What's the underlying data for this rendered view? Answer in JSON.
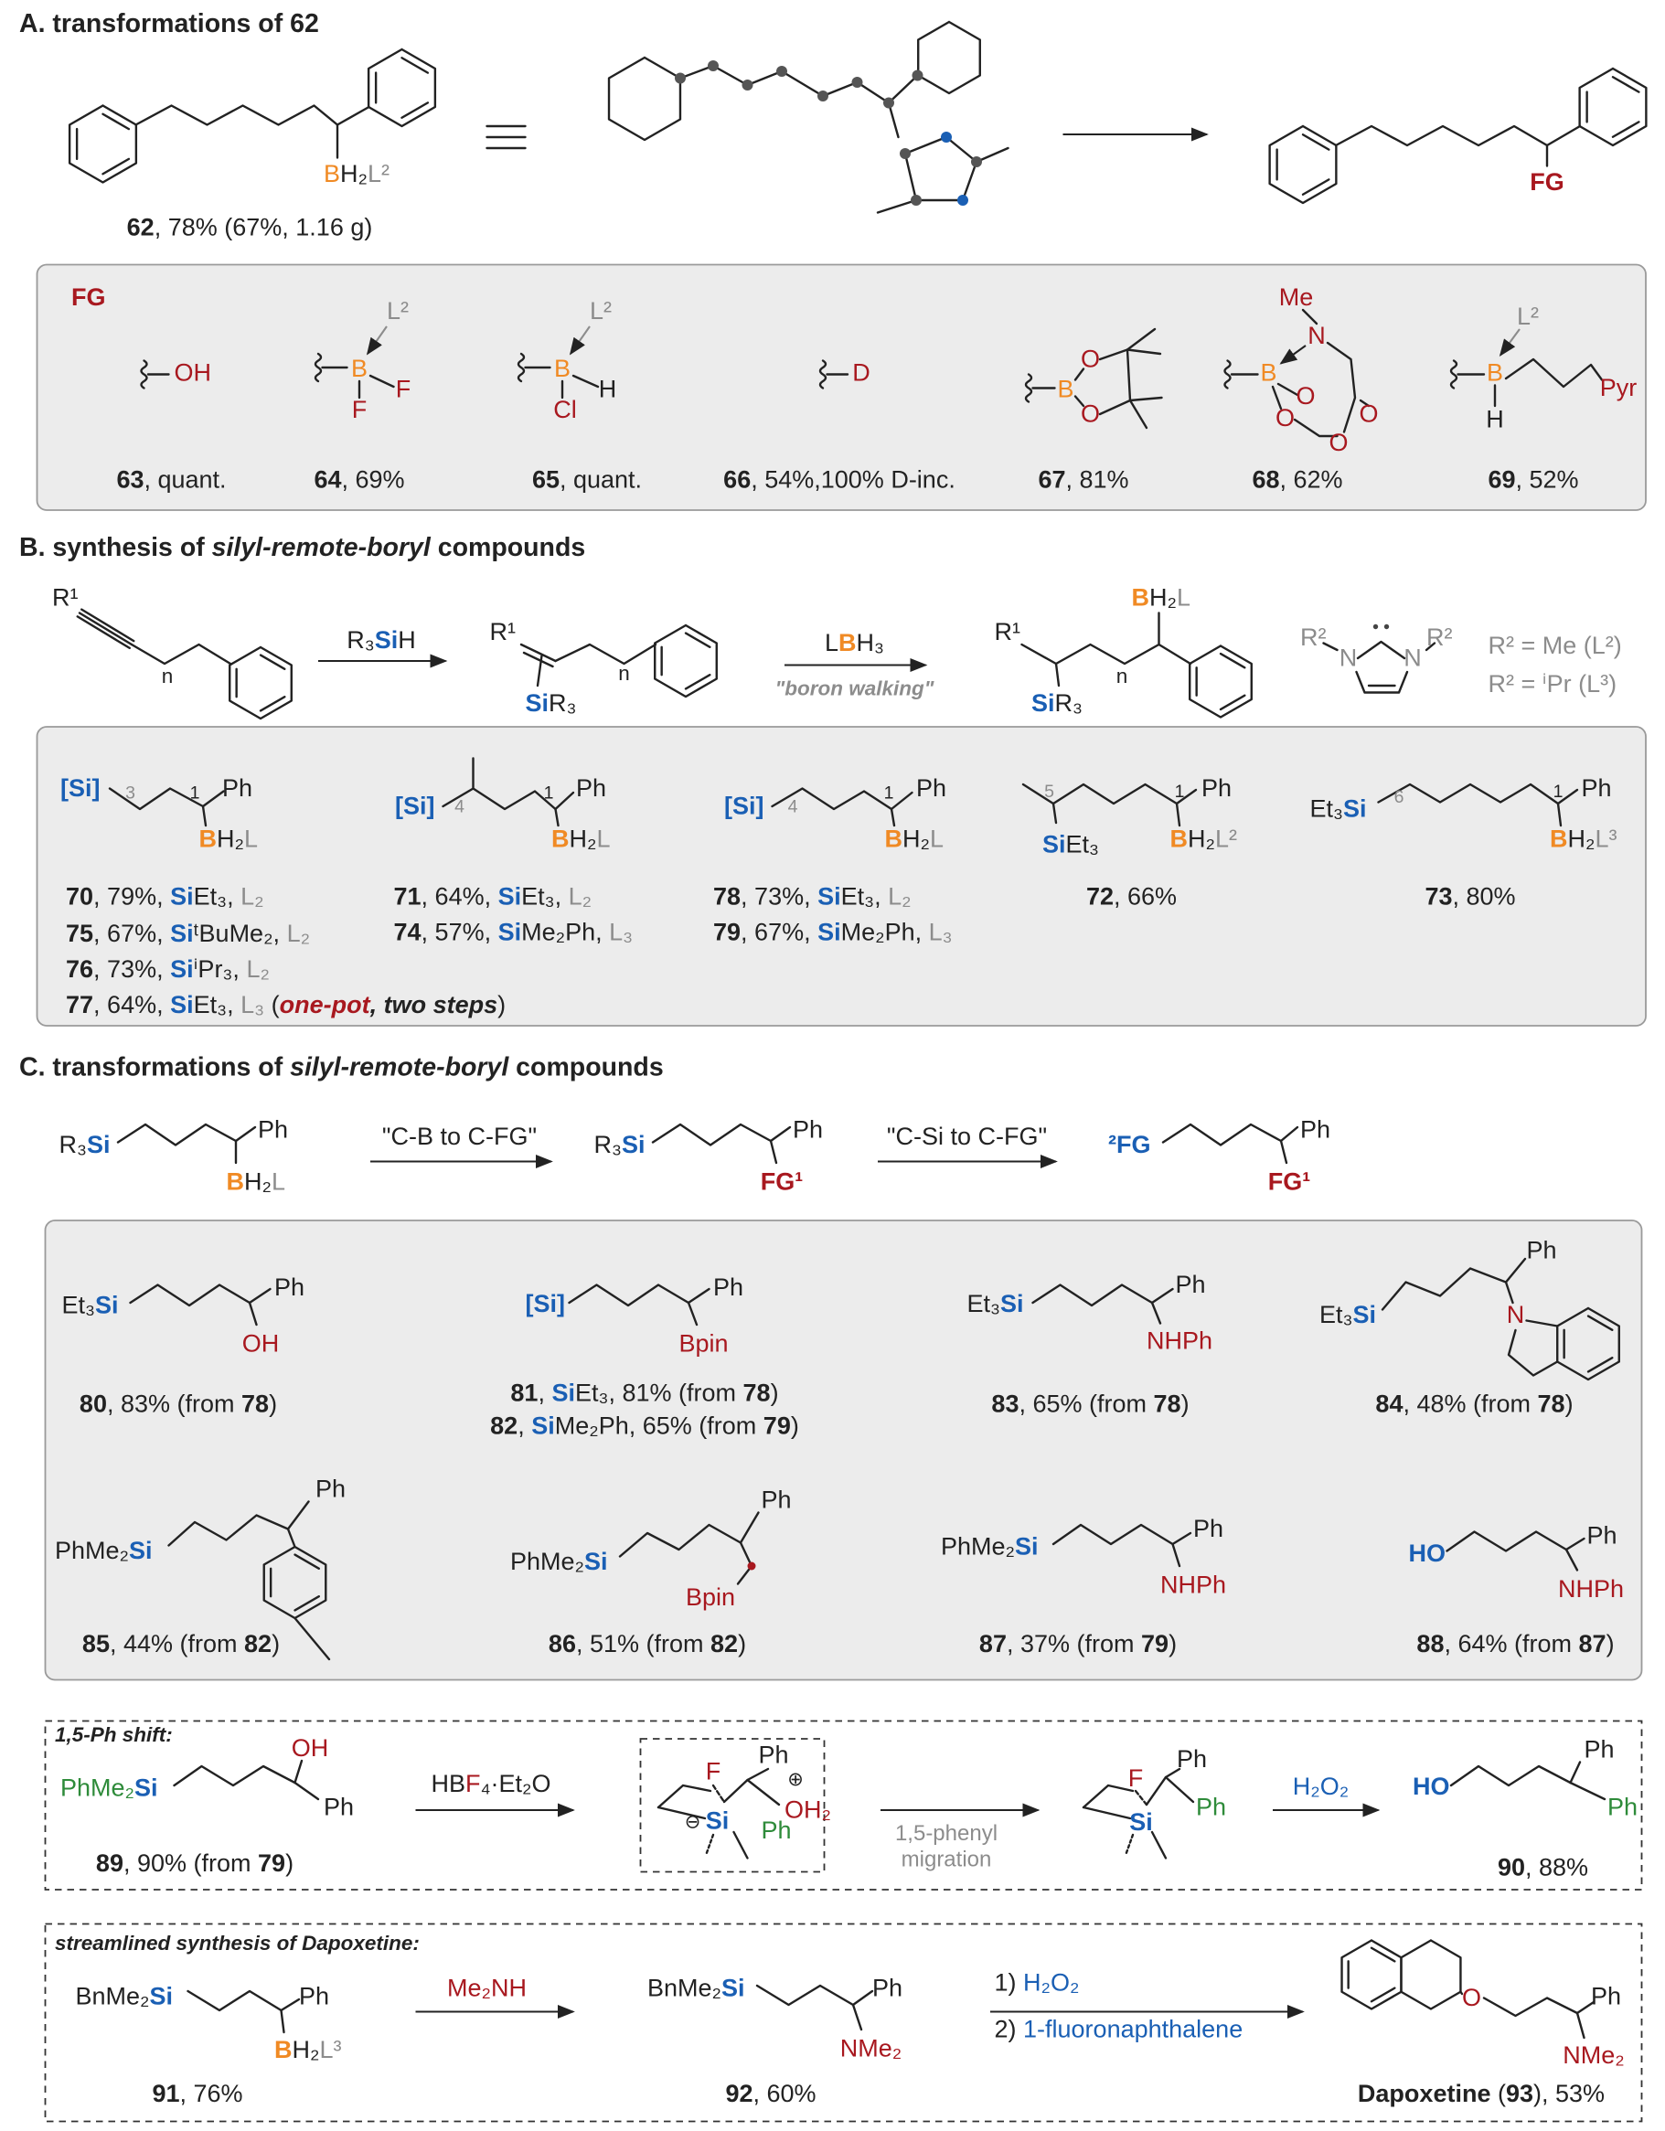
{
  "section_a": {
    "title": [
      "A. transformations of 62"
    ],
    "labels": [
      [
        {
          "text": "B",
          "color": "#f08a24"
        },
        "H₂",
        {
          "text": "L²",
          "color": "#8c8c8c"
        }
      ],
      [
        {
          "text": "FG",
          "color": "#a8181f",
          "bold": true
        }
      ],
      [
        {
          "text": "FG",
          "color": "#a8181f",
          "bold": true
        }
      ],
      [
        {
          "text": "OH",
          "color": "#a8181f"
        }
      ],
      [
        {
          "text": "B",
          "color": "#f08a24"
        }
      ],
      [
        {
          "text": "F",
          "color": "#a8181f"
        }
      ],
      [
        {
          "text": "F",
          "color": "#a8181f"
        }
      ],
      [
        {
          "text": "L²",
          "color": "#8c8c8c"
        }
      ],
      [
        {
          "text": "B",
          "color": "#f08a24"
        }
      ],
      [
        "H"
      ],
      [
        {
          "text": "Cl",
          "color": "#a8181f"
        }
      ],
      [
        {
          "text": "L²",
          "color": "#8c8c8c"
        }
      ],
      [
        {
          "text": "D",
          "color": "#a8181f"
        }
      ],
      [
        {
          "text": "B",
          "color": "#f08a24"
        }
      ],
      [
        {
          "text": "O",
          "color": "#a8181f"
        }
      ],
      [
        {
          "text": "O",
          "color": "#a8181f"
        }
      ],
      [
        {
          "text": "Me",
          "color": "#a8181f"
        }
      ],
      [
        {
          "text": "N",
          "color": "#a8181f"
        }
      ],
      [
        {
          "text": "B",
          "color": "#f08a24"
        }
      ],
      [
        {
          "text": "O",
          "color": "#a8181f"
        }
      ],
      [
        {
          "text": "O",
          "color": "#a8181f"
        }
      ],
      [
        {
          "text": "O",
          "color": "#a8181f"
        }
      ],
      [
        {
          "text": "O",
          "color": "#a8181f"
        }
      ],
      [
        {
          "text": "B",
          "color": "#f08a24"
        }
      ],
      [
        {
          "text": "L²",
          "color": "#8c8c8c"
        }
      ],
      [
        "H"
      ],
      [
        {
          "text": "Pyr",
          "color": "#a8181f"
        }
      ]
    ],
    "captions": [
      [
        {
          "text": "62",
          "bold": true
        },
        ", 78% (67%, 1.16 g)"
      ],
      [
        {
          "text": "63",
          "bold": true
        },
        ", quant."
      ],
      [
        {
          "text": "64",
          "bold": true
        },
        ", 69%"
      ],
      [
        {
          "text": "65",
          "bold": true
        },
        ", quant."
      ],
      [
        {
          "text": "66",
          "bold": true
        },
        ", 54%,100% D-inc."
      ],
      [
        {
          "text": "67",
          "bold": true
        },
        ", 81%"
      ],
      [
        {
          "text": "68",
          "bold": true
        },
        ", 62%"
      ],
      [
        {
          "text": "69",
          "bold": true
        },
        ", 52%"
      ]
    ]
  },
  "section_b": {
    "title": [
      "B. synthesis of ",
      {
        "text": "silyl-remote-boryl",
        "italic": true
      },
      " compounds"
    ],
    "labels": [
      [
        "R¹"
      ],
      [
        "n"
      ],
      [
        "R₃",
        {
          "text": "Si",
          "color": "#1a5fb4",
          "bold": true
        },
        "H"
      ],
      [
        "R¹"
      ],
      [
        "n"
      ],
      [
        {
          "text": "Si",
          "color": "#1a5fb4",
          "bold": true
        },
        "R₃"
      ],
      [
        "L",
        {
          "text": "B",
          "color": "#f08a24",
          "bold": true
        },
        "H₃"
      ],
      [
        {
          "text": "\"boron walking\"",
          "color": "#8c8c8c",
          "bold": true,
          "italic": true
        }
      ],
      [
        {
          "text": "B",
          "color": "#f08a24",
          "bold": true
        },
        "H₂",
        {
          "text": "L",
          "color": "#8c8c8c"
        }
      ],
      [
        "R¹"
      ],
      [
        "n"
      ],
      [
        {
          "text": "Si",
          "color": "#1a5fb4",
          "bold": true
        },
        "R₃"
      ],
      [
        {
          "text": "R²",
          "color": "#8c8c8c"
        }
      ],
      [
        {
          "text": "N",
          "color": "#8c8c8c"
        }
      ],
      [
        {
          "text": "N",
          "color": "#8c8c8c"
        }
      ],
      [
        {
          "text": "R²",
          "color": "#8c8c8c"
        }
      ],
      [
        {
          "text": "R² = Me (L²)",
          "color": "#8c8c8c"
        }
      ],
      [
        {
          "text": "R² = ⁱPr (L³)",
          "color": "#8c8c8c"
        }
      ],
      [
        {
          "text": "[Si]",
          "color": "#1a5fb4",
          "bold": true
        }
      ],
      [
        {
          "text": "3",
          "color": "#8c8c8c"
        }
      ],
      [
        "1"
      ],
      [
        "Ph"
      ],
      [
        {
          "text": "B",
          "color": "#f08a24",
          "bold": true
        },
        "H₂",
        {
          "text": "L",
          "color": "#8c8c8c"
        }
      ],
      [
        {
          "text": "[Si]",
          "color": "#1a5fb4",
          "bold": true
        }
      ],
      [
        {
          "text": "4",
          "color": "#8c8c8c"
        }
      ],
      [
        "1"
      ],
      [
        "Ph"
      ],
      [
        {
          "text": "B",
          "color": "#f08a24",
          "bold": true
        },
        "H₂",
        {
          "text": "L",
          "color": "#8c8c8c"
        }
      ],
      [
        {
          "text": "[Si]",
          "color": "#1a5fb4",
          "bold": true
        }
      ],
      [
        {
          "text": "4",
          "color": "#8c8c8c"
        }
      ],
      [
        "1"
      ],
      [
        "Ph"
      ],
      [
        {
          "text": "B",
          "color": "#f08a24",
          "bold": true
        },
        "H₂",
        {
          "text": "L",
          "color": "#8c8c8c"
        }
      ],
      [
        {
          "text": "5",
          "color": "#8c8c8c"
        }
      ],
      [
        "1"
      ],
      [
        "Ph"
      ],
      [
        {
          "text": "Si",
          "color": "#1a5fb4",
          "bold": true
        },
        "Et₃"
      ],
      [
        {
          "text": "B",
          "color": "#f08a24",
          "bold": true
        },
        "H₂",
        {
          "text": "L²",
          "color": "#8c8c8c"
        }
      ],
      [
        "Et₃",
        {
          "text": "Si",
          "color": "#1a5fb4",
          "bold": true
        }
      ],
      [
        {
          "text": "6",
          "color": "#8c8c8c"
        }
      ],
      [
        "1"
      ],
      [
        "Ph"
      ],
      [
        {
          "text": "B",
          "color": "#f08a24",
          "bold": true
        },
        "H₂",
        {
          "text": "L³",
          "color": "#8c8c8c"
        }
      ]
    ],
    "captions": [
      [
        {
          "text": "70",
          "bold": true
        },
        ", 79%, ",
        {
          "text": "Si",
          "color": "#1a5fb4",
          "bold": true
        },
        "Et₃, ",
        {
          "text": "L₂",
          "color": "#8c8c8c"
        }
      ],
      [
        {
          "text": "75",
          "bold": true
        },
        ", 67%, ",
        {
          "text": "Si",
          "color": "#1a5fb4",
          "bold": true
        },
        "ᵗBuMe₂, ",
        {
          "text": "L₂",
          "color": "#8c8c8c"
        }
      ],
      [
        {
          "text": "76",
          "bold": true
        },
        ", 73%, ",
        {
          "text": "Si",
          "color": "#1a5fb4",
          "bold": true
        },
        "ⁱPr₃, ",
        {
          "text": "L₂",
          "color": "#8c8c8c"
        }
      ],
      [
        {
          "text": "77",
          "bold": true
        },
        ", 64%, ",
        {
          "text": "Si",
          "color": "#1a5fb4",
          "bold": true
        },
        "Et₃, ",
        {
          "text": "L₃",
          "color": "#8c8c8c"
        },
        " (",
        {
          "text": "one-pot",
          "color": "#a8181f",
          "bold": true,
          "italic": true
        },
        {
          "text": ", two steps",
          "bold": true,
          "italic": true
        },
        ")"
      ],
      [
        {
          "text": "71",
          "bold": true
        },
        ", 64%, ",
        {
          "text": "Si",
          "color": "#1a5fb4",
          "bold": true
        },
        "Et₃, ",
        {
          "text": "L₂",
          "color": "#8c8c8c"
        }
      ],
      [
        {
          "text": "74",
          "bold": true
        },
        ", 57%, ",
        {
          "text": "Si",
          "color": "#1a5fb4",
          "bold": true
        },
        "Me₂Ph, ",
        {
          "text": "L₃",
          "color": "#8c8c8c"
        }
      ],
      [
        {
          "text": "78",
          "bold": true
        },
        ", 73%, ",
        {
          "text": "Si",
          "color": "#1a5fb4",
          "bold": true
        },
        "Et₃, ",
        {
          "text": "L₂",
          "color": "#8c8c8c"
        }
      ],
      [
        {
          "text": "79",
          "bold": true
        },
        ", 67%, ",
        {
          "text": "Si",
          "color": "#1a5fb4",
          "bold": true
        },
        "Me₂Ph, ",
        {
          "text": "L₃",
          "color": "#8c8c8c"
        }
      ],
      [
        {
          "text": "72",
          "bold": true
        },
        ", 66%"
      ],
      [
        {
          "text": "73",
          "bold": true
        },
        ", 80%"
      ]
    ]
  },
  "section_c": {
    "title": [
      "C. transformations of ",
      {
        "text": "silyl-remote-boryl",
        "italic": true
      },
      " compounds"
    ],
    "labels": [
      [
        "R₃",
        {
          "text": "Si",
          "color": "#1a5fb4",
          "bold": true
        }
      ],
      [
        "Ph"
      ],
      [
        {
          "text": "B",
          "color": "#f08a24",
          "bold": true
        },
        "H₂",
        {
          "text": "L",
          "color": "#8c8c8c"
        }
      ],
      [
        "\"C-B to C-FG\""
      ],
      [
        "R₃",
        {
          "text": "Si",
          "color": "#1a5fb4",
          "bold": true
        }
      ],
      [
        "Ph"
      ],
      [
        {
          "text": "FG¹",
          "color": "#a8181f",
          "bold": true
        }
      ],
      [
        "\"C-Si to C-FG\""
      ],
      [
        {
          "text": "²FG",
          "color": "#1a5fb4",
          "bold": true
        }
      ],
      [
        "Ph"
      ],
      [
        {
          "text": "FG¹",
          "color": "#a8181f",
          "bold": true
        }
      ],
      [
        "Et₃",
        {
          "text": "Si",
          "color": "#1a5fb4",
          "bold": true
        }
      ],
      [
        "Ph"
      ],
      [
        {
          "text": "OH",
          "color": "#a8181f"
        }
      ],
      [
        {
          "text": "[Si]",
          "color": "#1a5fb4",
          "bold": true
        }
      ],
      [
        "Ph"
      ],
      [
        {
          "text": "Bpin",
          "color": "#a8181f"
        }
      ],
      [
        "Et₃",
        {
          "text": "Si",
          "color": "#1a5fb4",
          "bold": true
        }
      ],
      [
        "Ph"
      ],
      [
        {
          "text": "NHPh",
          "color": "#a8181f"
        }
      ],
      [
        "Et₃",
        {
          "text": "Si",
          "color": "#1a5fb4",
          "bold": true
        }
      ],
      [
        "Ph"
      ],
      [
        {
          "text": "N",
          "color": "#a8181f"
        }
      ],
      [
        "PhMe₂",
        {
          "text": "Si",
          "color": "#1a5fb4",
          "bold": true
        }
      ],
      [
        "Ph"
      ],
      [
        "PhMe₂",
        {
          "text": "Si",
          "color": "#1a5fb4",
          "bold": true
        }
      ],
      [
        "Ph"
      ],
      [
        {
          "text": "Bpin",
          "color": "#a8181f"
        }
      ],
      [
        "PhMe₂",
        {
          "text": "Si",
          "color": "#1a5fb4",
          "bold": true
        }
      ],
      [
        "Ph"
      ],
      [
        {
          "text": "NHPh",
          "color": "#a8181f"
        }
      ],
      [
        {
          "text": "HO",
          "color": "#1a5fb4",
          "bold": true
        }
      ],
      [
        "Ph"
      ],
      [
        {
          "text": "NHPh",
          "color": "#a8181f"
        }
      ]
    ],
    "captions": [
      [
        {
          "text": "80",
          "bold": true
        },
        ", 83% (from ",
        {
          "text": "78",
          "bold": true
        },
        ")"
      ],
      [
        {
          "text": "81",
          "bold": true
        },
        ", ",
        {
          "text": "Si",
          "color": "#1a5fb4",
          "bold": true
        },
        "Et₃, 81% (from ",
        {
          "text": "78",
          "bold": true
        },
        ")"
      ],
      [
        {
          "text": "82",
          "bold": true
        },
        ", ",
        {
          "text": "Si",
          "color": "#1a5fb4",
          "bold": true
        },
        "Me₂Ph, 65% (from ",
        {
          "text": "79",
          "bold": true
        },
        ")"
      ],
      [
        {
          "text": "83",
          "bold": true
        },
        ", 65% (from ",
        {
          "text": "78",
          "bold": true
        },
        ")"
      ],
      [
        {
          "text": "84",
          "bold": true
        },
        ", 48% (from ",
        {
          "text": "78",
          "bold": true
        },
        ")"
      ],
      [
        {
          "text": "85",
          "bold": true
        },
        ", 44% (from ",
        {
          "text": "82",
          "bold": true
        },
        ")"
      ],
      [
        {
          "text": "86",
          "bold": true
        },
        ", 51% (from ",
        {
          "text": "82",
          "bold": true
        },
        ")"
      ],
      [
        {
          "text": "87",
          "bold": true
        },
        ", 37% (from ",
        {
          "text": "79",
          "bold": true
        },
        ")"
      ],
      [
        {
          "text": "88",
          "bold": true
        },
        ", 64% (from ",
        {
          "text": "87",
          "bold": true
        },
        ")"
      ]
    ]
  },
  "box_ph_shift": {
    "title": [
      {
        "text": "1,5-Ph shift:",
        "bold": true,
        "italic": true
      }
    ],
    "labels": [
      [
        {
          "text": "OH",
          "color": "#a8181f"
        }
      ],
      [
        {
          "text": "PhMe₂",
          "color": "#2e8b3a"
        },
        {
          "text": "Si",
          "color": "#1a5fb4",
          "bold": true
        }
      ],
      [
        "Ph"
      ],
      [
        "HB",
        {
          "text": "F",
          "color": "#a8181f"
        },
        "₄·Et₂O"
      ],
      [
        {
          "text": "F",
          "color": "#a8181f"
        }
      ],
      [
        "Ph"
      ],
      [
        "⊕"
      ],
      [
        {
          "text": "OH₂",
          "color": "#a8181f"
        }
      ],
      [
        "⊖"
      ],
      [
        {
          "text": "Si",
          "color": "#1a5fb4",
          "bold": true
        }
      ],
      [
        {
          "text": "Ph",
          "color": "#2e8b3a"
        }
      ],
      [
        {
          "text": "1,5-phenyl",
          "color": "#8c8c8c"
        }
      ],
      [
        {
          "text": "migration",
          "color": "#8c8c8c"
        }
      ],
      [
        {
          "text": "F",
          "color": "#a8181f"
        }
      ],
      [
        "Ph"
      ],
      [
        {
          "text": "Ph",
          "color": "#2e8b3a"
        }
      ],
      [
        {
          "text": "Si",
          "color": "#1a5fb4",
          "bold": true
        }
      ],
      [
        {
          "text": "H₂O₂",
          "color": "#1a5fb4"
        }
      ],
      [
        {
          "text": "HO",
          "color": "#1a5fb4",
          "bold": true
        }
      ],
      [
        "Ph"
      ],
      [
        {
          "text": "Ph",
          "color": "#2e8b3a"
        }
      ]
    ],
    "captions": [
      [
        {
          "text": "89",
          "bold": true
        },
        ", 90% (from ",
        {
          "text": "79",
          "bold": true
        },
        ")"
      ],
      [
        {
          "text": "90",
          "bold": true
        },
        ", 88%"
      ]
    ]
  },
  "box_dapoxetine": {
    "title": [
      {
        "text": "streamlined synthesis of Dapoxetine:",
        "bold": true,
        "italic": true
      }
    ],
    "labels": [
      [
        "BnMe₂",
        {
          "text": "Si",
          "color": "#1a5fb4",
          "bold": true
        }
      ],
      [
        "Ph"
      ],
      [
        {
          "text": "B",
          "color": "#f08a24",
          "bold": true
        },
        "H₂",
        {
          "text": "L³",
          "color": "#8c8c8c"
        }
      ],
      [
        {
          "text": "Me₂NH",
          "color": "#a8181f"
        }
      ],
      [
        "BnMe₂",
        {
          "text": "Si",
          "color": "#1a5fb4",
          "bold": true
        }
      ],
      [
        "Ph"
      ],
      [
        {
          "text": "NMe₂",
          "color": "#a8181f"
        }
      ],
      [
        "1) ",
        {
          "text": "H₂O₂",
          "color": "#1a5fb4"
        }
      ],
      [
        "2) ",
        {
          "text": "1-fluoronaphthalene",
          "color": "#1a5fb4"
        }
      ],
      [
        {
          "text": "O",
          "color": "#a8181f"
        }
      ],
      [
        "Ph"
      ],
      [
        {
          "text": "NMe₂",
          "color": "#a8181f"
        }
      ]
    ],
    "captions": [
      [
        {
          "text": "91",
          "bold": true
        },
        ", 76%"
      ],
      [
        {
          "text": "92",
          "bold": true
        },
        ", 60%"
      ],
      [
        {
          "text": "Dapoxetine",
          "bold": true
        },
        " (",
        {
          "text": "93",
          "bold": true
        },
        "), 53%"
      ]
    ]
  }
}
